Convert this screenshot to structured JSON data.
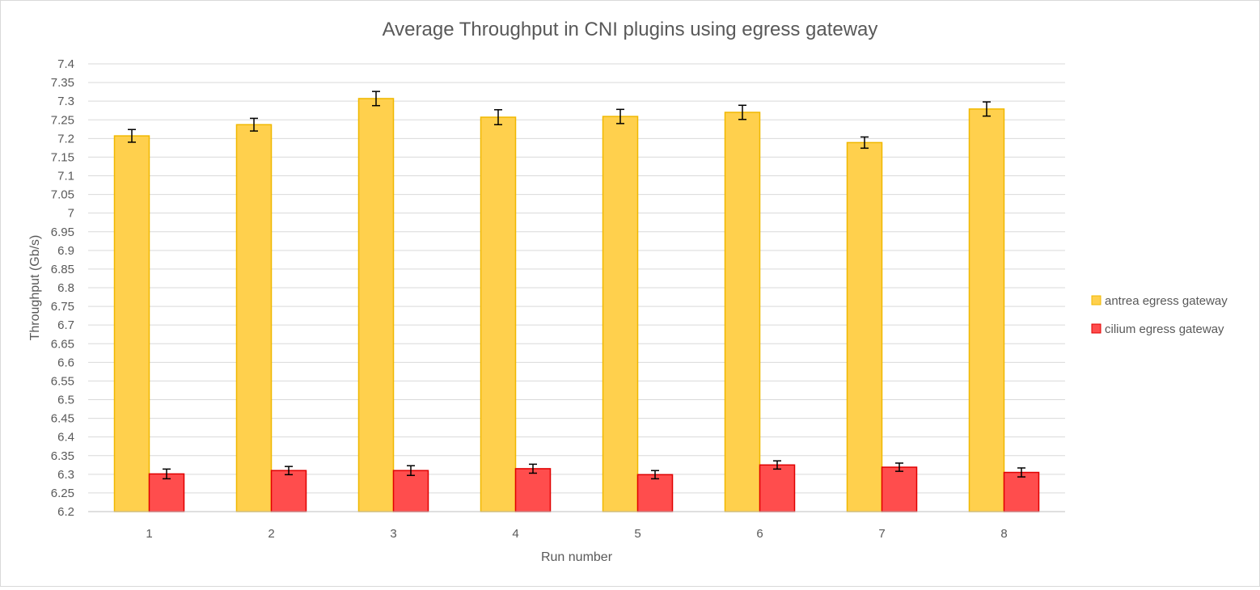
{
  "chart_data": {
    "type": "bar",
    "title": "Average Throughput in CNI plugins using egress gateway",
    "xlabel": "Run number",
    "ylabel": "Throughput (Gb/s)",
    "categories": [
      "1",
      "2",
      "3",
      "4",
      "5",
      "6",
      "7",
      "8"
    ],
    "ylim": [
      6.2,
      7.4
    ],
    "ytick_step": 0.05,
    "yticks": [
      "6.2",
      "6.25",
      "6.3",
      "6.35",
      "6.4",
      "6.45",
      "6.5",
      "6.55",
      "6.6",
      "6.65",
      "6.7",
      "6.75",
      "6.8",
      "6.85",
      "6.9",
      "6.95",
      "7",
      "7.05",
      "7.1",
      "7.15",
      "7.2",
      "7.25",
      "7.3",
      "7.35",
      "7.4"
    ],
    "grid": true,
    "legend_position": "right",
    "error_bars": true,
    "series": [
      {
        "name": "antrea egress gateway",
        "color": "#FFD04D",
        "edge_color": "#F0B800",
        "values": [
          7.207,
          7.237,
          7.307,
          7.257,
          7.259,
          7.27,
          7.189,
          7.279
        ],
        "errors": [
          0.017,
          0.017,
          0.019,
          0.02,
          0.019,
          0.019,
          0.015,
          0.019
        ]
      },
      {
        "name": "cilium egress gateway",
        "color": "#FF4D4D",
        "edge_color": "#E00000",
        "values": [
          6.301,
          6.31,
          6.31,
          6.315,
          6.299,
          6.325,
          6.319,
          6.305
        ],
        "errors": [
          0.013,
          0.011,
          0.013,
          0.012,
          0.011,
          0.011,
          0.011,
          0.012
        ]
      }
    ]
  }
}
